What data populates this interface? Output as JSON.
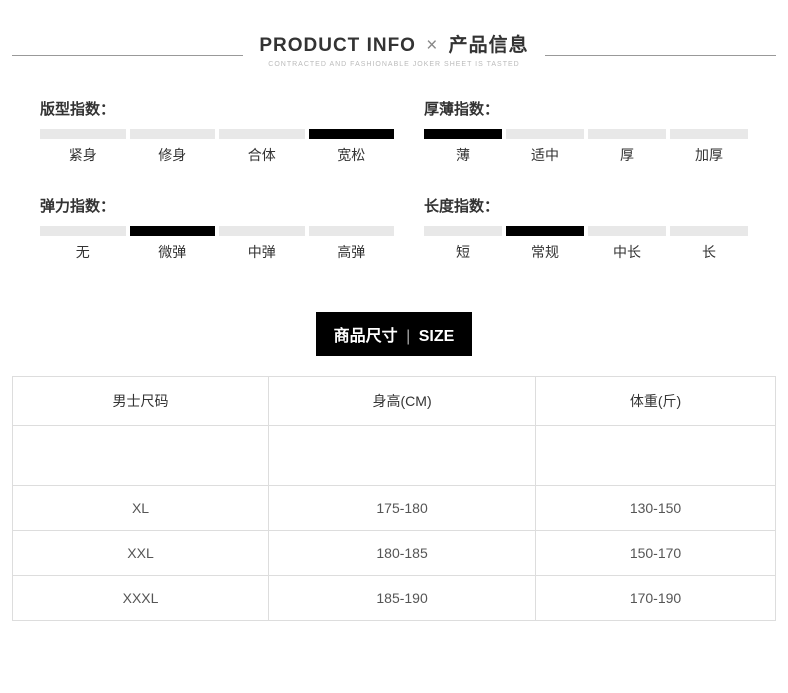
{
  "header": {
    "title_left": "PRODUCT INFO",
    "title_sep": "×",
    "title_right": "产品信息",
    "subtitle": "CONTRACTED AND FASHIONABLE JOKER SHEET IS TASTED"
  },
  "indices": [
    {
      "title": "版型指数：",
      "side": "left",
      "items": [
        {
          "label": "紧身",
          "active": false
        },
        {
          "label": "修身",
          "active": false
        },
        {
          "label": "合体",
          "active": false
        },
        {
          "label": "宽松",
          "active": true
        }
      ]
    },
    {
      "title": "厚薄指数：",
      "side": "right",
      "items": [
        {
          "label": "薄",
          "active": true
        },
        {
          "label": "适中",
          "active": false
        },
        {
          "label": "厚",
          "active": false
        },
        {
          "label": "加厚",
          "active": false
        }
      ]
    },
    {
      "title": "弹力指数：",
      "side": "left",
      "items": [
        {
          "label": "无",
          "active": false
        },
        {
          "label": "微弹",
          "active": true
        },
        {
          "label": "中弹",
          "active": false
        },
        {
          "label": "高弹",
          "active": false
        }
      ]
    },
    {
      "title": "长度指数：",
      "side": "right",
      "items": [
        {
          "label": "短",
          "active": false
        },
        {
          "label": "常规",
          "active": true
        },
        {
          "label": "中长",
          "active": false
        },
        {
          "label": "长",
          "active": false
        }
      ]
    }
  ],
  "size_heading": {
    "left": "商品尺寸",
    "sep": "|",
    "right": "SIZE"
  },
  "size_table": {
    "columns": [
      "男士尺码",
      "身高(CM)",
      "体重(斤)"
    ],
    "rows": [
      [
        "",
        "",
        ""
      ],
      [
        "XL",
        "175-180",
        "130-150"
      ],
      [
        "XXL",
        "180-185",
        "150-170"
      ],
      [
        "XXXL",
        "185-190",
        "170-190"
      ]
    ]
  },
  "colors": {
    "bar_inactive": "#e8e8e8",
    "bar_active": "#000000",
    "border": "#dddddd",
    "text": "#333333"
  }
}
